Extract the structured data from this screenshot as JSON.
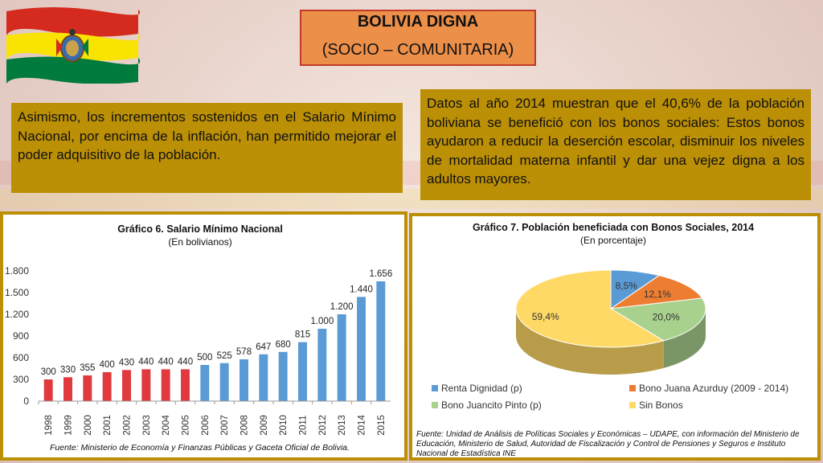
{
  "slide": {
    "title_line1": "BOLIVIA DIGNA",
    "title_line2": "(SOCIO – COMUNITARIA)",
    "left_text": "Asimismo, los incrementos sostenidos en el Salario Mínimo Nacional, por encima de la inflación, han permitido mejorar el poder adquisitivo de la población.",
    "right_text": "Datos al año 2014 muestran que el 40,6% de la población boliviana se benefició con los bonos sociales: Estos bonos ayudaron a reducir la deserción escolar, disminuir los niveles de mortalidad materna infantil y dar una vejez digna a los adultos mayores."
  },
  "colors": {
    "accent_gold": "#bb8f06",
    "title_bg": "#ec8f49",
    "bar_red": "#e0393e",
    "bar_blue": "#5b9bd5",
    "flag_red": "#d52b1e",
    "flag_yellow": "#f9e300",
    "flag_green": "#007a3d"
  },
  "chart_data": [
    {
      "type": "bar",
      "title": "Gráfico 6. Salario Mínimo Nacional",
      "subtitle": "(En bolivianos)",
      "categories": [
        "1998",
        "1999",
        "2000",
        "2001",
        "2002",
        "2003",
        "2004",
        "2005",
        "2006",
        "2007",
        "2008",
        "2009",
        "2010",
        "2011",
        "2012",
        "2013",
        "2014",
        "2015"
      ],
      "values": [
        300,
        330,
        355,
        400,
        430,
        440,
        440,
        440,
        500,
        525,
        578,
        647,
        680,
        815,
        1000,
        1200,
        1440,
        1656
      ],
      "value_labels": [
        "300",
        "330",
        "355",
        "400",
        "430",
        "440",
        "440",
        "440",
        "500",
        "525",
        "578",
        "647",
        "680",
        "815",
        "1.000",
        "1.200",
        "1.440",
        "1.656"
      ],
      "bar_colors": [
        "#e0393e",
        "#e0393e",
        "#e0393e",
        "#e0393e",
        "#e0393e",
        "#e0393e",
        "#e0393e",
        "#e0393e",
        "#5b9bd5",
        "#5b9bd5",
        "#5b9bd5",
        "#5b9bd5",
        "#5b9bd5",
        "#5b9bd5",
        "#5b9bd5",
        "#5b9bd5",
        "#5b9bd5",
        "#5b9bd5"
      ],
      "ylim": [
        0,
        1800
      ],
      "y_ticks": [
        0,
        300,
        600,
        900,
        1200,
        1500,
        1800
      ],
      "y_tick_labels": [
        "0",
        "300",
        "600",
        "900",
        "1.200",
        "1.500",
        "1.800"
      ],
      "grid": false,
      "source": "Fuente: Ministerio de Economía y Finanzas Públicas y Gaceta Oficial de Bolivia."
    },
    {
      "type": "pie",
      "title": "Gráfico 7. Población beneficiada con Bonos Sociales, 2014",
      "subtitle": "(En porcentaje)",
      "slices": [
        {
          "name": "Renta Dignidad (p)",
          "value": 8.5,
          "label": "8,5%",
          "color": "#5b9bd5"
        },
        {
          "name": "Bono Juana Azurduy (2009 - 2014)",
          "value": 12.1,
          "label": "12,1%",
          "color": "#ed7d31"
        },
        {
          "name": "Bono Juancito Pinto (p)",
          "value": 20.0,
          "label": "20,0%",
          "color": "#a9d18e"
        },
        {
          "name": "Sin Bonos",
          "value": 59.4,
          "label": "59,4%",
          "color": "#ffd966"
        }
      ],
      "legend_position": "bottom",
      "source": "Fuente: Unidad de Análisis de Políticas Sociales y Económicas – UDAPE, con información del Ministerio de Educación, Ministerio de Salud, Autoridad de Fiscalización y Control de Pensiones y Seguros e Instituto Nacional de Estadística INE"
    }
  ]
}
